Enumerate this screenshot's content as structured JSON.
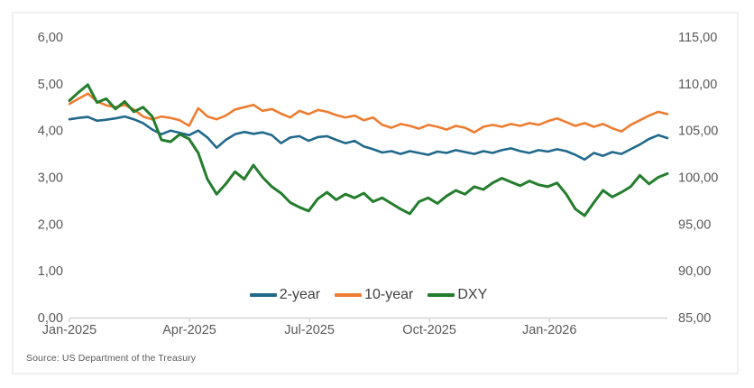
{
  "chart_data": {
    "type": "line",
    "title": "",
    "source": "Source: US Department of the Treasury",
    "x_tick_labels": [
      "Jan-2025",
      "Apr-2025",
      "Jul-2025",
      "Oct-2025",
      "Jan-2026"
    ],
    "x_months_span": 14.95,
    "x_unit": "weeks since Jan-2025",
    "left_axis": {
      "min": 0,
      "max": 6,
      "ticks": [
        "6,00",
        "5,00",
        "4,00",
        "3,00",
        "2,00",
        "1,00",
        "0,00"
      ]
    },
    "right_axis": {
      "min": 85,
      "max": 115,
      "ticks": [
        "115,00",
        "110,00",
        "105,00",
        "100,00",
        "95,00",
        "90,00",
        "85,00"
      ]
    },
    "grid": "off",
    "legend_position": "bottom-center",
    "colors": {
      "two_year": "#20698b",
      "ten_year": "#ed7d31",
      "dxy": "#247d2c",
      "axis_text": "#595959",
      "axis_line": "#d6d6d6"
    },
    "series": [
      {
        "name": "2-year",
        "axis": "left",
        "color": "#20698b",
        "values": [
          4.24,
          4.27,
          4.29,
          4.21,
          4.23,
          4.26,
          4.3,
          4.24,
          4.16,
          4.02,
          3.92,
          4.0,
          3.95,
          3.9,
          4.0,
          3.85,
          3.63,
          3.8,
          3.92,
          3.97,
          3.93,
          3.96,
          3.9,
          3.73,
          3.85,
          3.88,
          3.78,
          3.86,
          3.88,
          3.8,
          3.73,
          3.78,
          3.66,
          3.6,
          3.53,
          3.56,
          3.5,
          3.56,
          3.52,
          3.48,
          3.55,
          3.52,
          3.58,
          3.54,
          3.5,
          3.56,
          3.52,
          3.58,
          3.62,
          3.56,
          3.52,
          3.58,
          3.55,
          3.6,
          3.56,
          3.48,
          3.38,
          3.52,
          3.46,
          3.54,
          3.5,
          3.6,
          3.7,
          3.82,
          3.9,
          3.84
        ]
      },
      {
        "name": "10-year",
        "axis": "left",
        "color": "#ed7d31",
        "values": [
          4.57,
          4.68,
          4.79,
          4.62,
          4.54,
          4.5,
          4.55,
          4.45,
          4.3,
          4.24,
          4.3,
          4.27,
          4.22,
          4.1,
          4.48,
          4.3,
          4.24,
          4.32,
          4.45,
          4.5,
          4.55,
          4.42,
          4.46,
          4.36,
          4.28,
          4.42,
          4.35,
          4.44,
          4.4,
          4.33,
          4.28,
          4.32,
          4.22,
          4.28,
          4.12,
          4.06,
          4.14,
          4.1,
          4.04,
          4.12,
          4.08,
          4.02,
          4.1,
          4.06,
          3.96,
          4.08,
          4.12,
          4.08,
          4.14,
          4.1,
          4.16,
          4.12,
          4.2,
          4.26,
          4.18,
          4.1,
          4.16,
          4.08,
          4.14,
          4.05,
          3.98,
          4.12,
          4.22,
          4.32,
          4.4,
          4.35
        ]
      },
      {
        "name": "DXY",
        "axis": "right",
        "color": "#247d2c",
        "values": [
          108.2,
          109.1,
          109.9,
          108.0,
          108.4,
          107.3,
          108.1,
          107.0,
          107.5,
          106.5,
          104.0,
          103.8,
          104.6,
          104.1,
          102.6,
          99.8,
          98.2,
          99.3,
          100.6,
          99.8,
          101.3,
          100.0,
          99.0,
          98.3,
          97.3,
          96.8,
          96.4,
          97.7,
          98.4,
          97.6,
          98.2,
          97.8,
          98.3,
          97.4,
          97.8,
          97.2,
          96.6,
          96.1,
          97.4,
          97.8,
          97.2,
          98.0,
          98.6,
          98.2,
          99.0,
          98.7,
          99.4,
          99.9,
          99.5,
          99.1,
          99.6,
          99.2,
          99.0,
          99.4,
          98.2,
          96.6,
          95.9,
          97.3,
          98.6,
          97.9,
          98.4,
          99.0,
          100.2,
          99.3,
          100.0,
          100.4
        ]
      }
    ]
  }
}
